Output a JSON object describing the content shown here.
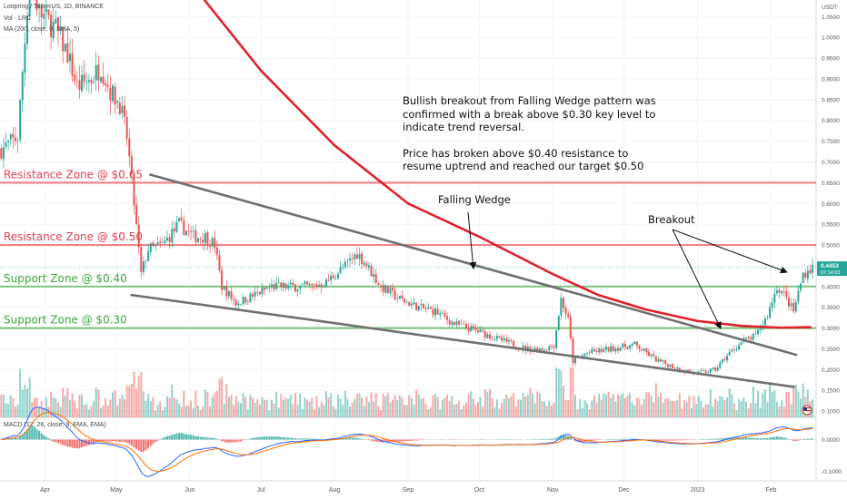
{
  "header": {
    "symbol": "Loopring / TetherUS, 1D, BINANCE",
    "vol_label": "Vol · LRC",
    "ma_label": "MA (200, close, 0, SMA, 5)",
    "macd_label": "MACD (12, 26, close, 9, EMA, EMA)"
  },
  "annotation": {
    "para1": "Bullish breakout from Falling Wedge pattern was confirmed with a break above $0.30 key level to indicate trend reversal.",
    "para2": "Price has broken above $0.40 resistance to resume uptrend and reached our target $0.50"
  },
  "colors": {
    "up": "#26a69a",
    "down": "#ef5350",
    "ma": "#e0222b",
    "resistance": "#f0707a",
    "support": "#6fbf6f",
    "wedge": "#707070",
    "resistance_text": "#e0404e",
    "support_text": "#3ea83e",
    "macd_line": "#2962ff",
    "signal_line": "#ff6d00",
    "price_tag": "#26a69a"
  },
  "chart_data": {
    "type": "candlestick",
    "y_unit": "USDT",
    "ylim": [
      0.085,
      1.09
    ],
    "x_range": [
      "2022-03-13",
      "2023-02-20"
    ],
    "current_price": 0.4453,
    "price_tag_time": "07:14:03",
    "x_ticks": [
      {
        "date": "2022-04-01",
        "label": "Apr"
      },
      {
        "date": "2022-05-01",
        "label": "May"
      },
      {
        "date": "2022-06-01",
        "label": "Jun"
      },
      {
        "date": "2022-07-01",
        "label": "Jul"
      },
      {
        "date": "2022-08-01",
        "label": "Aug"
      },
      {
        "date": "2022-09-01",
        "label": "Sep"
      },
      {
        "date": "2022-10-01",
        "label": "Oct"
      },
      {
        "date": "2022-11-01",
        "label": "Nov"
      },
      {
        "date": "2022-12-01",
        "label": "Dec"
      },
      {
        "date": "2023-01-01",
        "label": "2023"
      },
      {
        "date": "2023-02-01",
        "label": "Feb"
      }
    ],
    "y_ticks": [
      "1.0500",
      "1.0000",
      "0.9500",
      "0.9000",
      "0.8500",
      "0.8000",
      "0.7500",
      "0.7000",
      "0.6500",
      "0.6000",
      "0.5500",
      "0.5000",
      "0.4500",
      "0.4000",
      "0.3500",
      "0.3000",
      "0.2500",
      "0.2000",
      "0.1500",
      "0.1000"
    ],
    "zones": [
      {
        "label": "Resistance Zone @ $0.65",
        "price": 0.65,
        "kind": "resistance"
      },
      {
        "label": "Resistance Zone @ $0.50",
        "price": 0.5,
        "kind": "resistance"
      },
      {
        "label": "Support Zone @ $0.40",
        "price": 0.4,
        "kind": "support"
      },
      {
        "label": "Support Zone @ $0.30",
        "price": 0.3,
        "kind": "support"
      }
    ],
    "wedge_lines": [
      {
        "from": {
          "date": "2022-05-15",
          "price": 0.67
        },
        "to": {
          "date": "2023-02-12",
          "price": 0.235
        }
      },
      {
        "from": {
          "date": "2022-05-07",
          "price": 0.38
        },
        "to": {
          "date": "2023-02-11",
          "price": 0.158
        }
      }
    ],
    "labels": {
      "falling_wedge": "Falling Wedge",
      "breakout": "Breakout"
    },
    "close_path": [
      {
        "date": "2022-03-13",
        "price": 0.73
      },
      {
        "date": "2022-03-20",
        "price": 0.76
      },
      {
        "date": "2022-03-25",
        "price": 1.15
      },
      {
        "date": "2022-03-29",
        "price": 1.06
      },
      {
        "date": "2022-04-05",
        "price": 1.02
      },
      {
        "date": "2022-04-10",
        "price": 0.96
      },
      {
        "date": "2022-04-14",
        "price": 0.88
      },
      {
        "date": "2022-04-20",
        "price": 0.9
      },
      {
        "date": "2022-04-24",
        "price": 0.93
      },
      {
        "date": "2022-04-28",
        "price": 0.87
      },
      {
        "date": "2022-05-02",
        "price": 0.84
      },
      {
        "date": "2022-05-05",
        "price": 0.76
      },
      {
        "date": "2022-05-08",
        "price": 0.6
      },
      {
        "date": "2022-05-11",
        "price": 0.43
      },
      {
        "date": "2022-05-14",
        "price": 0.49
      },
      {
        "date": "2022-05-20",
        "price": 0.5
      },
      {
        "date": "2022-05-27",
        "price": 0.55
      },
      {
        "date": "2022-06-02",
        "price": 0.52
      },
      {
        "date": "2022-06-07",
        "price": 0.52
      },
      {
        "date": "2022-06-11",
        "price": 0.5
      },
      {
        "date": "2022-06-14",
        "price": 0.4
      },
      {
        "date": "2022-06-20",
        "price": 0.36
      },
      {
        "date": "2022-06-28",
        "price": 0.38
      },
      {
        "date": "2022-07-05",
        "price": 0.4
      },
      {
        "date": "2022-07-15",
        "price": 0.4
      },
      {
        "date": "2022-07-22",
        "price": 0.4
      },
      {
        "date": "2022-07-28",
        "price": 0.41
      },
      {
        "date": "2022-08-05",
        "price": 0.45
      },
      {
        "date": "2022-08-10",
        "price": 0.48
      },
      {
        "date": "2022-08-13",
        "price": 0.46
      },
      {
        "date": "2022-08-20",
        "price": 0.4
      },
      {
        "date": "2022-08-28",
        "price": 0.37
      },
      {
        "date": "2022-09-05",
        "price": 0.35
      },
      {
        "date": "2022-09-12",
        "price": 0.34
      },
      {
        "date": "2022-09-20",
        "price": 0.31
      },
      {
        "date": "2022-10-01",
        "price": 0.29
      },
      {
        "date": "2022-10-10",
        "price": 0.27
      },
      {
        "date": "2022-10-20",
        "price": 0.25
      },
      {
        "date": "2022-10-28",
        "price": 0.25
      },
      {
        "date": "2022-11-01",
        "price": 0.26
      },
      {
        "date": "2022-11-04",
        "price": 0.37
      },
      {
        "date": "2022-11-07",
        "price": 0.32
      },
      {
        "date": "2022-11-09",
        "price": 0.22
      },
      {
        "date": "2022-11-15",
        "price": 0.24
      },
      {
        "date": "2022-11-25",
        "price": 0.25
      },
      {
        "date": "2022-12-05",
        "price": 0.26
      },
      {
        "date": "2022-12-15",
        "price": 0.22
      },
      {
        "date": "2022-12-25",
        "price": 0.2
      },
      {
        "date": "2022-12-31",
        "price": 0.19
      },
      {
        "date": "2023-01-08",
        "price": 0.2
      },
      {
        "date": "2023-01-14",
        "price": 0.24
      },
      {
        "date": "2023-01-20",
        "price": 0.27
      },
      {
        "date": "2023-01-25",
        "price": 0.28
      },
      {
        "date": "2023-01-30",
        "price": 0.33
      },
      {
        "date": "2023-02-03",
        "price": 0.4
      },
      {
        "date": "2023-02-06",
        "price": 0.38
      },
      {
        "date": "2023-02-10",
        "price": 0.34
      },
      {
        "date": "2023-02-14",
        "price": 0.43
      },
      {
        "date": "2023-02-18",
        "price": 0.445
      }
    ],
    "ma_path": [
      {
        "date": "2022-05-01",
        "price": 1.4
      },
      {
        "date": "2022-05-20",
        "price": 1.22
      },
      {
        "date": "2022-06-10",
        "price": 1.07
      },
      {
        "date": "2022-07-01",
        "price": 0.92
      },
      {
        "date": "2022-08-01",
        "price": 0.74
      },
      {
        "date": "2022-09-01",
        "price": 0.6
      },
      {
        "date": "2022-10-01",
        "price": 0.52
      },
      {
        "date": "2022-11-01",
        "price": 0.43
      },
      {
        "date": "2022-11-20",
        "price": 0.38
      },
      {
        "date": "2022-12-10",
        "price": 0.345
      },
      {
        "date": "2023-01-01",
        "price": 0.317
      },
      {
        "date": "2023-01-20",
        "price": 0.305
      },
      {
        "date": "2023-02-05",
        "price": 0.301
      },
      {
        "date": "2023-02-18",
        "price": 0.302
      }
    ],
    "macd": {
      "y_ticks": [
        "0.0000",
        "-0.1000"
      ],
      "ylim": [
        -0.13,
        0.07
      ]
    }
  }
}
